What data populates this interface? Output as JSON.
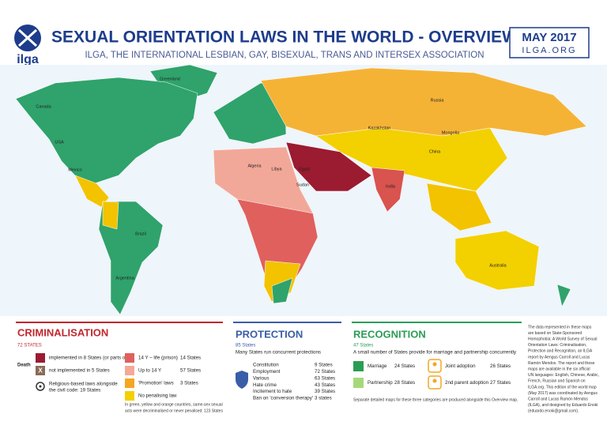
{
  "header": {
    "logo": "ilga",
    "title": "SEXUAL ORIENTATION LAWS IN THE WORLD - OVERVIEW",
    "subtitle": "ILGA, THE INTERNATIONAL LESBIAN, GAY, BISEXUAL, TRANS AND INTERSEX ASSOCIATION",
    "date": "MAY 2017",
    "site": "ILGA.ORG"
  },
  "map": {
    "labels": [
      "Greenland",
      "Canada",
      "USA",
      "Mexico",
      "Brazil",
      "Argentina",
      "Russia",
      "Kazakhstan",
      "Mongolia",
      "China",
      "India",
      "Algeria",
      "Libya",
      "Egypt",
      "Sudan",
      "Australia"
    ]
  },
  "criminalisation": {
    "title": "CRIMINALISATION",
    "count": "72 STATES",
    "death_label": "Death",
    "death_implemented": "implemented in 8 States (or parts of)",
    "death_not_implemented": "not implemented in 5 States",
    "religious": [
      "Religious-based laws alongside",
      "the civil code: 19 States"
    ],
    "levels": [
      {
        "label": "14 Y – life (prison)",
        "count": "14 States"
      },
      {
        "label": "Up to 14 Y",
        "count": "57 States"
      },
      {
        "label": "'Promotion' laws",
        "count": "3 States"
      },
      {
        "label": "No penalising law"
      }
    ],
    "note": [
      "In green, yellow and orange countries, same-sex sexual",
      "acts were decriminalised or never penalised: 123 States"
    ]
  },
  "protection": {
    "title": "PROTECTION",
    "count": "85 States",
    "subtitle": "Many States run concurrent protections",
    "rows": [
      {
        "label": "Constitution",
        "count": "9 States"
      },
      {
        "label": "Employment",
        "count": "72 States"
      },
      {
        "label": "Various",
        "count": "63 States"
      },
      {
        "label": "Hate crime",
        "count": "43 States"
      },
      {
        "label": "Incitement to hate",
        "count": "39 States"
      },
      {
        "label": "Ban on 'conversion therapy'",
        "count": "3 states"
      }
    ]
  },
  "recognition": {
    "title": "RECOGNITION",
    "count": "47 States",
    "subtitle": "A small number of States provide for marriage and partnership concurrently",
    "rows": [
      {
        "label": "Marriage",
        "count": "24 States"
      },
      {
        "label": "Partnership",
        "count": "28 States"
      },
      {
        "label": "Joint adoption",
        "count": "26 States"
      },
      {
        "label": "2nd parent adoption",
        "count": "27 States"
      }
    ],
    "footnote": "Separate detailed maps for these three categories are produced alongside this Overview map."
  },
  "credits": [
    "The data represented in these maps",
    "are based on State-Sponsored",
    "Homophobia: A World Survey of Sexual",
    "Orientation Laws: Criminalisation,",
    "Protection and Recognition, an ILGA",
    "report by Aengus Carroll and Lucas",
    "Ramón Mendos. The report and these",
    "maps are available in the six official",
    "UN languages: English, Chinese, Arabic,",
    "French, Russian and Spanish on",
    "ILGA.org. This edition of the world map",
    "(May 2017) was coordinated by Aengus",
    "Carroll and Lucas Ramón Mendos",
    "(ILGA), and designed by Eduardo Enoki",
    "(eduardo.enoki@gmail.com)."
  ]
}
